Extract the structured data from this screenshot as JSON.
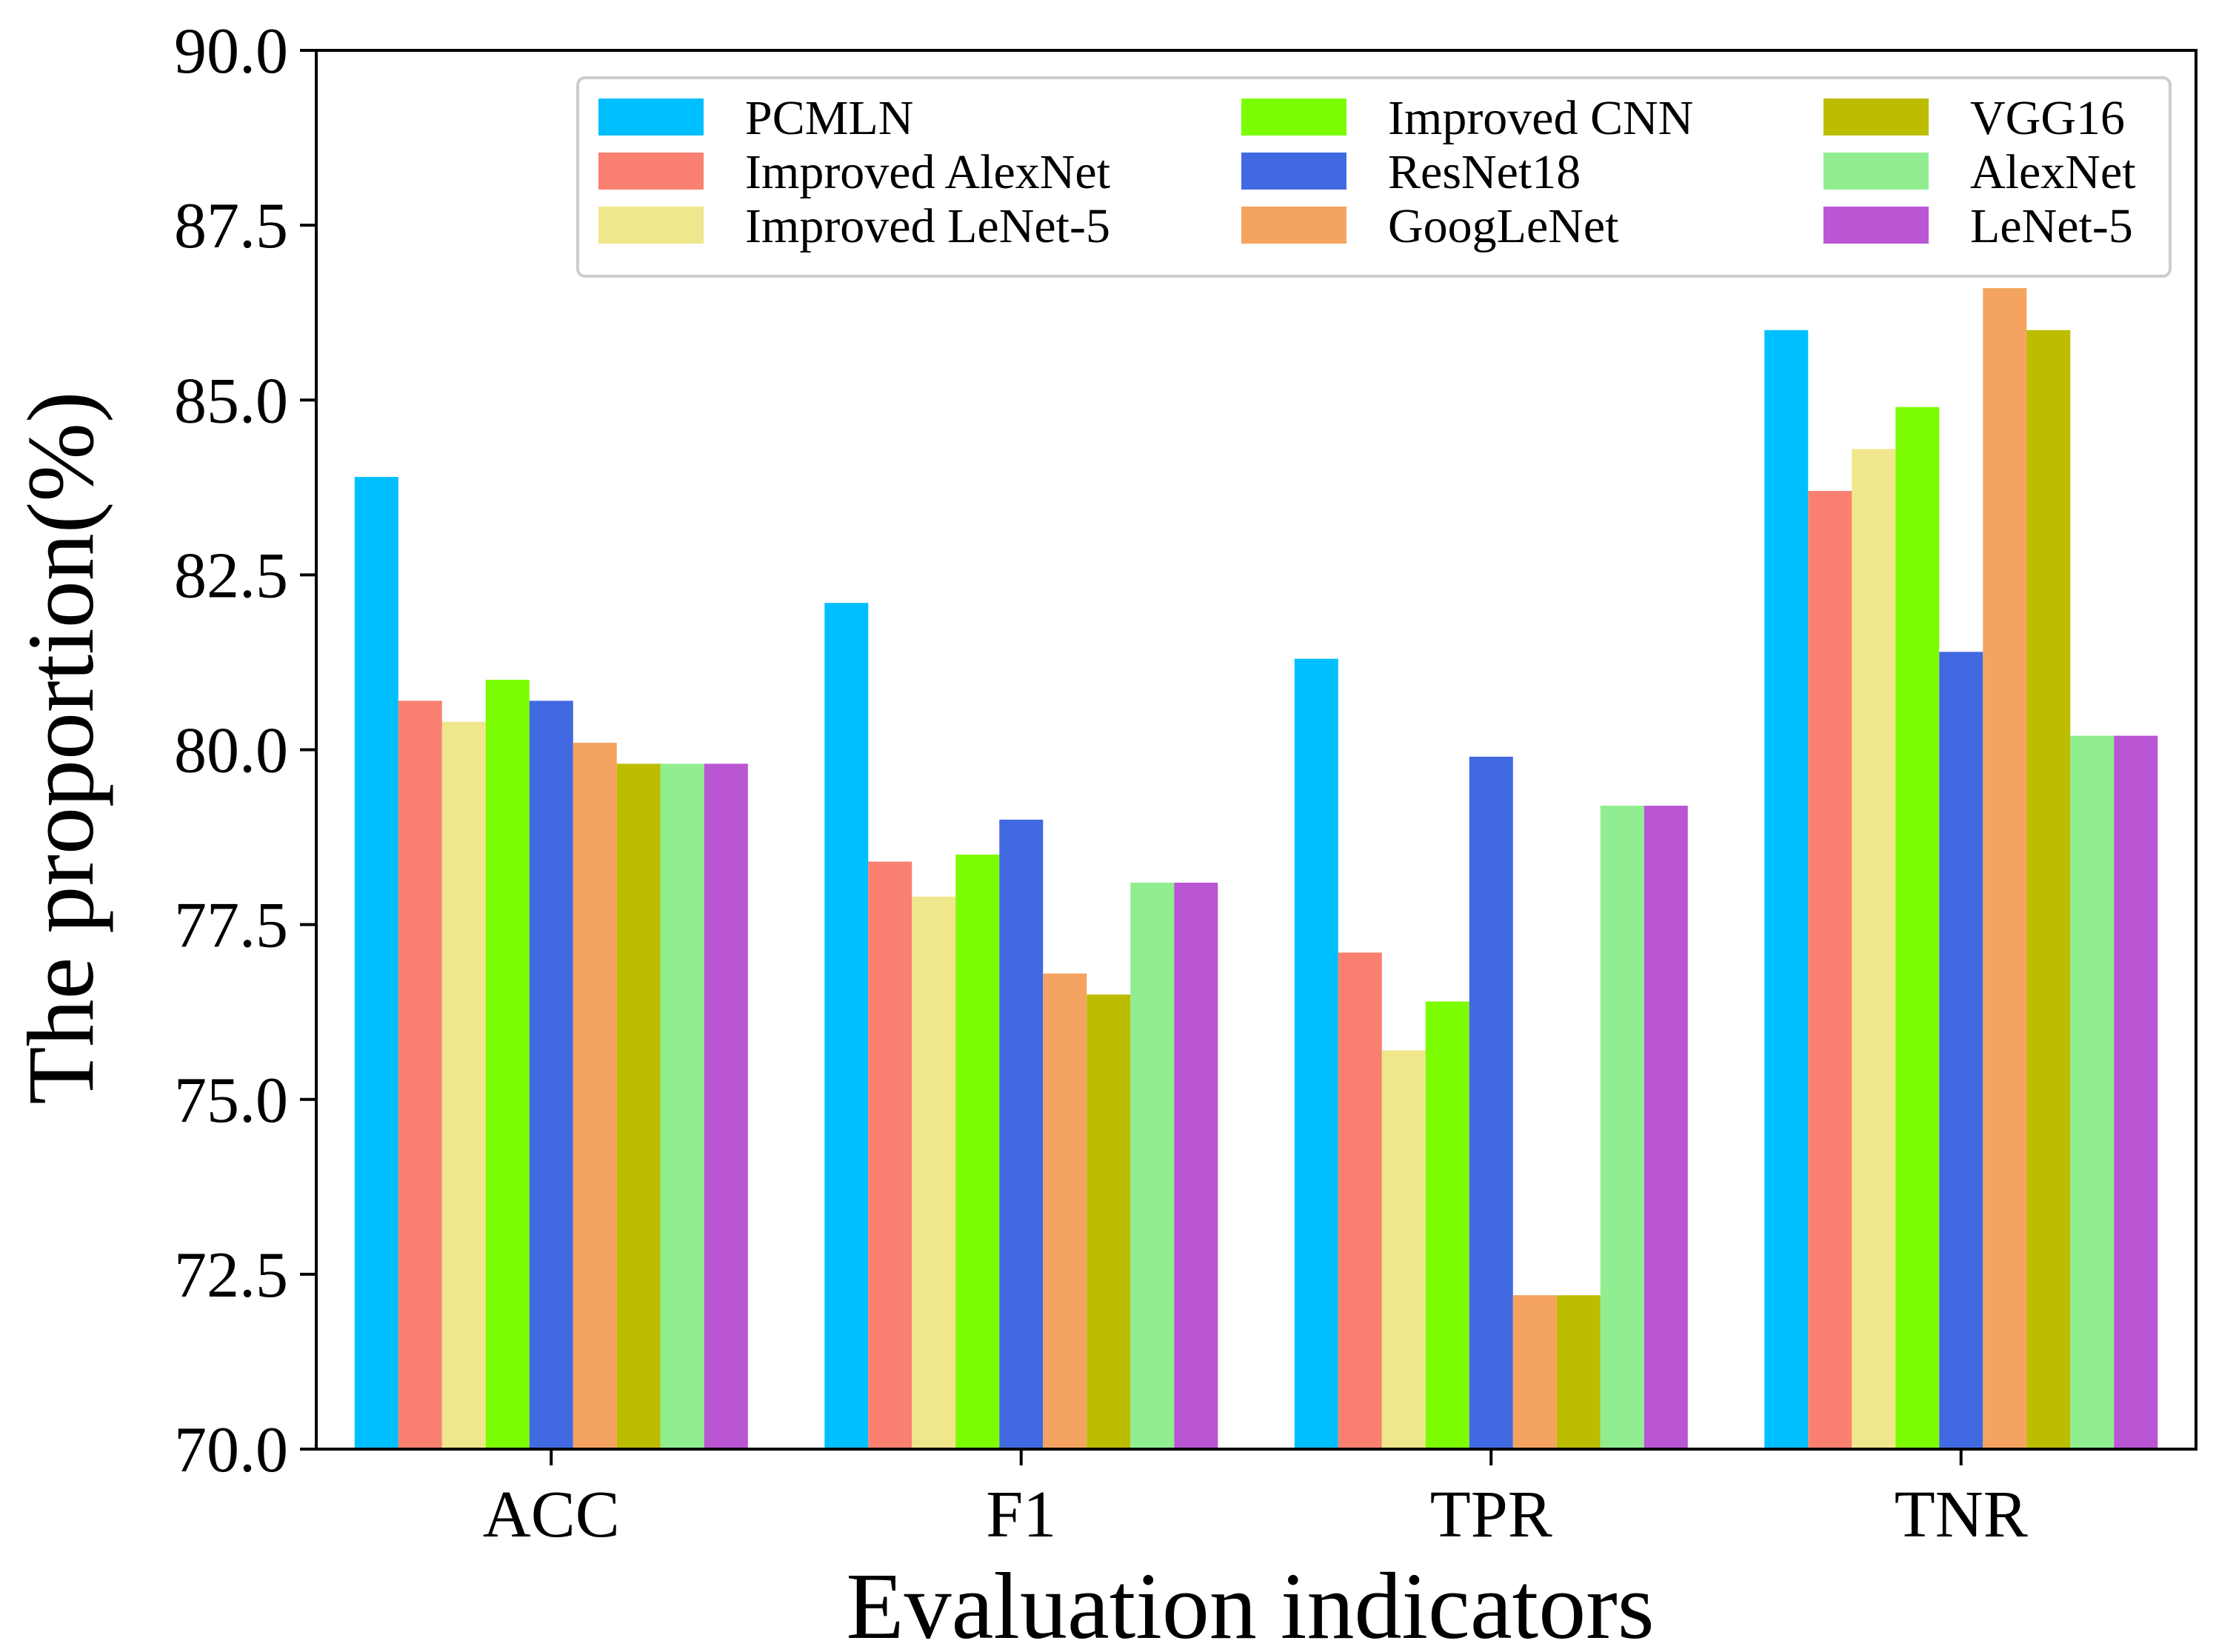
{
  "chart_data": {
    "type": "bar",
    "title": "",
    "xlabel": "Evaluation indicators",
    "ylabel": "The proportion(%)",
    "ylim": [
      70.0,
      90.0
    ],
    "yticks": [
      "70.0",
      "72.5",
      "75.0",
      "77.5",
      "80.0",
      "82.5",
      "85.0",
      "87.5",
      "90.0"
    ],
    "grid": false,
    "legend_position": "top-right",
    "categories": [
      "ACC",
      "F1",
      "TPR",
      "TNR"
    ],
    "series": [
      {
        "name": "PCMLN",
        "color": "#00bfff",
        "values": [
          83.9,
          82.1,
          81.3,
          86.0
        ]
      },
      {
        "name": "Improved AlexNet",
        "color": "#fa8072",
        "values": [
          80.7,
          78.4,
          77.1,
          83.7
        ]
      },
      {
        "name": "Improved LeNet-5",
        "color": "#f0e68c",
        "values": [
          80.4,
          77.9,
          75.7,
          84.3
        ]
      },
      {
        "name": "Improved CNN",
        "color": "#7cfc00",
        "values": [
          81.0,
          78.5,
          76.4,
          84.9
        ]
      },
      {
        "name": "ResNet18",
        "color": "#4169e1",
        "values": [
          80.7,
          79.0,
          79.9,
          81.4
        ]
      },
      {
        "name": "GoogLeNet",
        "color": "#f4a460",
        "values": [
          80.1,
          76.8,
          72.2,
          86.6
        ]
      },
      {
        "name": "VGG16",
        "color": "#bdbd00",
        "values": [
          79.8,
          76.5,
          72.2,
          86.0
        ]
      },
      {
        "name": "AlexNet",
        "color": "#90ee90",
        "values": [
          79.8,
          78.1,
          79.2,
          80.2
        ]
      },
      {
        "name": "LeNet-5",
        "color": "#ba55d3",
        "values": [
          79.8,
          78.1,
          79.2,
          80.2
        ]
      }
    ]
  }
}
